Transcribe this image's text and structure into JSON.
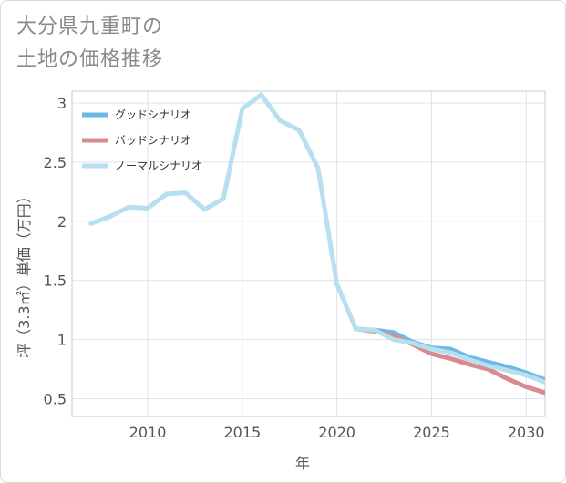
{
  "title_lines": [
    "大分県九重町の",
    "土地の価格推移"
  ],
  "chart_data": {
    "type": "line",
    "title": "大分県九重町の土地の価格推移",
    "xlabel": "年",
    "ylabel": "坪（3.3㎡）単価（万円）",
    "xlim": [
      2006,
      2031
    ],
    "ylim": [
      0.35,
      3.1
    ],
    "xticks": [
      2010,
      2015,
      2020,
      2025,
      2030
    ],
    "xtick_labels": [
      "2010",
      "2015",
      "2020",
      "2025",
      "2030"
    ],
    "yticks": [
      0.5,
      1,
      1.5,
      2,
      2.5,
      3
    ],
    "ytick_labels": [
      "0.5",
      "1",
      "1.5",
      "2",
      "2.5",
      "3"
    ],
    "grid": true,
    "legend_position": "top-left",
    "series": [
      {
        "name": "グッドシナリオ",
        "color": "#6cb8e6",
        "x": [
          2021,
          2022,
          2023,
          2024,
          2025,
          2026,
          2027,
          2028,
          2029,
          2030,
          2031
        ],
        "y": [
          1.09,
          1.08,
          1.06,
          0.98,
          0.93,
          0.92,
          0.85,
          0.81,
          0.77,
          0.72,
          0.66
        ]
      },
      {
        "name": "バッドシナリオ",
        "color": "#d98a91",
        "x": [
          2021,
          2022,
          2023,
          2024,
          2025,
          2026,
          2027,
          2028,
          2029,
          2030,
          2031
        ],
        "y": [
          1.09,
          1.07,
          1.03,
          0.96,
          0.88,
          0.84,
          0.79,
          0.75,
          0.67,
          0.6,
          0.55
        ]
      },
      {
        "name": "ノーマルシナリオ",
        "color": "#b7dff0",
        "x": [
          2007,
          2008,
          2009,
          2010,
          2011,
          2012,
          2013,
          2014,
          2015,
          2016,
          2017,
          2018,
          2019,
          2020,
          2021,
          2022,
          2023,
          2024,
          2025,
          2026,
          2027,
          2028,
          2029,
          2030,
          2031
        ],
        "y": [
          1.98,
          2.04,
          2.12,
          2.11,
          2.23,
          2.24,
          2.1,
          2.19,
          2.95,
          3.07,
          2.85,
          2.77,
          2.45,
          1.47,
          1.09,
          1.08,
          1.0,
          0.97,
          0.92,
          0.89,
          0.83,
          0.78,
          0.74,
          0.7,
          0.64
        ]
      }
    ]
  }
}
